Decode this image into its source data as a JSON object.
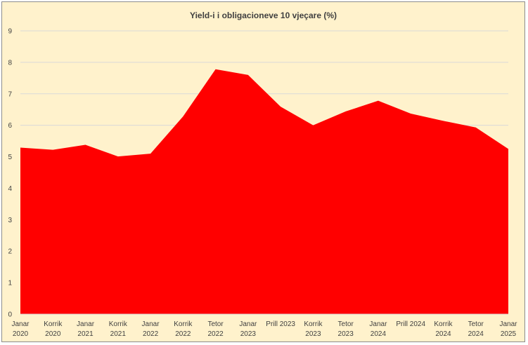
{
  "chart_data": {
    "type": "area",
    "title": "Yield-i i obligacioneve 10 vjeçare (%)",
    "xlabel": "",
    "ylabel": "",
    "ylim": [
      0,
      9
    ],
    "yticks": [
      0,
      1,
      2,
      3,
      4,
      5,
      6,
      7,
      8,
      9
    ],
    "grid": true,
    "legend": "none",
    "color": "#ff0000",
    "categories": [
      [
        "Janar",
        "2020"
      ],
      [
        "Korrik",
        "2020"
      ],
      [
        "Janar",
        "2021"
      ],
      [
        "Korrik",
        "2021"
      ],
      [
        "Janar",
        "2022"
      ],
      [
        "Korrik",
        "2022"
      ],
      [
        "Tetor",
        "2022"
      ],
      [
        "Janar",
        "2023"
      ],
      [
        "Prill 2023"
      ],
      [
        "Korrik",
        "2023"
      ],
      [
        "Tetor",
        "2023"
      ],
      [
        "Janar",
        "2024"
      ],
      [
        "Prill 2024"
      ],
      [
        "Korrik",
        "2024"
      ],
      [
        "Tetor",
        "2024"
      ],
      [
        "Janar",
        "2025"
      ]
    ],
    "x": [
      0,
      1,
      2,
      3,
      4,
      5,
      6,
      7,
      8,
      9,
      10,
      11,
      12,
      13,
      14,
      15
    ],
    "values": [
      5.29,
      5.22,
      5.38,
      5.01,
      5.1,
      6.28,
      7.78,
      7.6,
      6.59,
      6.0,
      6.44,
      6.78,
      6.37,
      6.14,
      5.93,
      5.25
    ]
  }
}
